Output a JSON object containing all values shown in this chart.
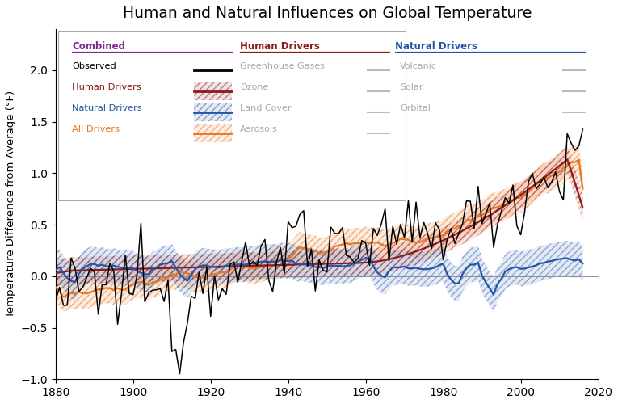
{
  "title": "Human and Natural Influences on Global Temperature",
  "ylabel": "Temperature Difference from Average (°F)",
  "xlim": [
    1880,
    2020
  ],
  "ylim": [
    -1.0,
    2.4
  ],
  "yticks": [
    -1.0,
    -0.5,
    0.0,
    0.5,
    1.0,
    1.5,
    2.0
  ],
  "xticks": [
    1880,
    1900,
    1920,
    1940,
    1960,
    1980,
    2000,
    2020
  ],
  "colors": {
    "observed": "#000000",
    "human": "#8B1A1A",
    "natural": "#2255AA",
    "all_drivers": "#E87722",
    "human_shade": "#C0392B",
    "natural_shade": "#2255AA",
    "all_shade": "#E87722"
  },
  "legend": {
    "combined_color": "#7B2D8B",
    "human_drivers_color": "#8B1A1A",
    "natural_drivers_color": "#2255AA"
  },
  "background": "#FFFFFF"
}
